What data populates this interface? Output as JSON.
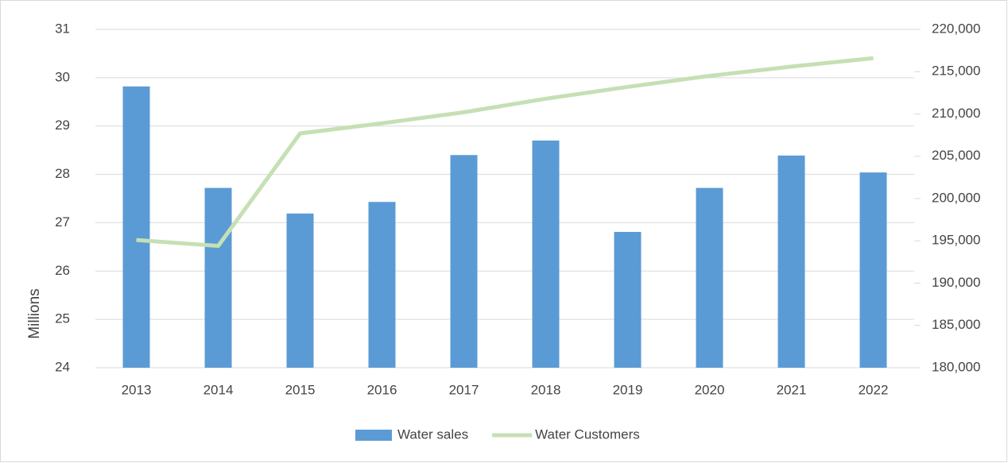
{
  "chart_data": {
    "type": "bar",
    "categories": [
      "2013",
      "2014",
      "2015",
      "2016",
      "2017",
      "2018",
      "2019",
      "2020",
      "2021",
      "2022"
    ],
    "series": [
      {
        "name": "Water sales",
        "type": "bar",
        "color": "#5b9bd5",
        "axis": "y",
        "values": [
          29.82,
          27.72,
          27.19,
          27.43,
          28.4,
          28.7,
          26.81,
          27.72,
          28.39,
          28.04
        ]
      },
      {
        "name": "Water Customers",
        "type": "line",
        "color": "#c5e0b4",
        "axis": "y2",
        "values": [
          195100,
          194400,
          207700,
          208900,
          210200,
          211800,
          213200,
          214500,
          215600,
          216600
        ]
      }
    ],
    "ylabel": "Millions",
    "ylim": [
      24,
      31
    ],
    "yticks": [
      24,
      25,
      26,
      27,
      28,
      29,
      30,
      31
    ],
    "y2lim": [
      180000,
      220000
    ],
    "y2ticks": [
      {
        "value": 180000,
        "label": "180,000"
      },
      {
        "value": 185000,
        "label": "185,000"
      },
      {
        "value": 190000,
        "label": "190,000"
      },
      {
        "value": 195000,
        "label": "195,000"
      },
      {
        "value": 200000,
        "label": "200,000"
      },
      {
        "value": 205000,
        "label": "205,000"
      },
      {
        "value": 210000,
        "label": "210,000"
      },
      {
        "value": 215000,
        "label": "215,000"
      },
      {
        "value": 220000,
        "label": "220,000"
      }
    ],
    "grid": true,
    "legend": "bottom"
  }
}
